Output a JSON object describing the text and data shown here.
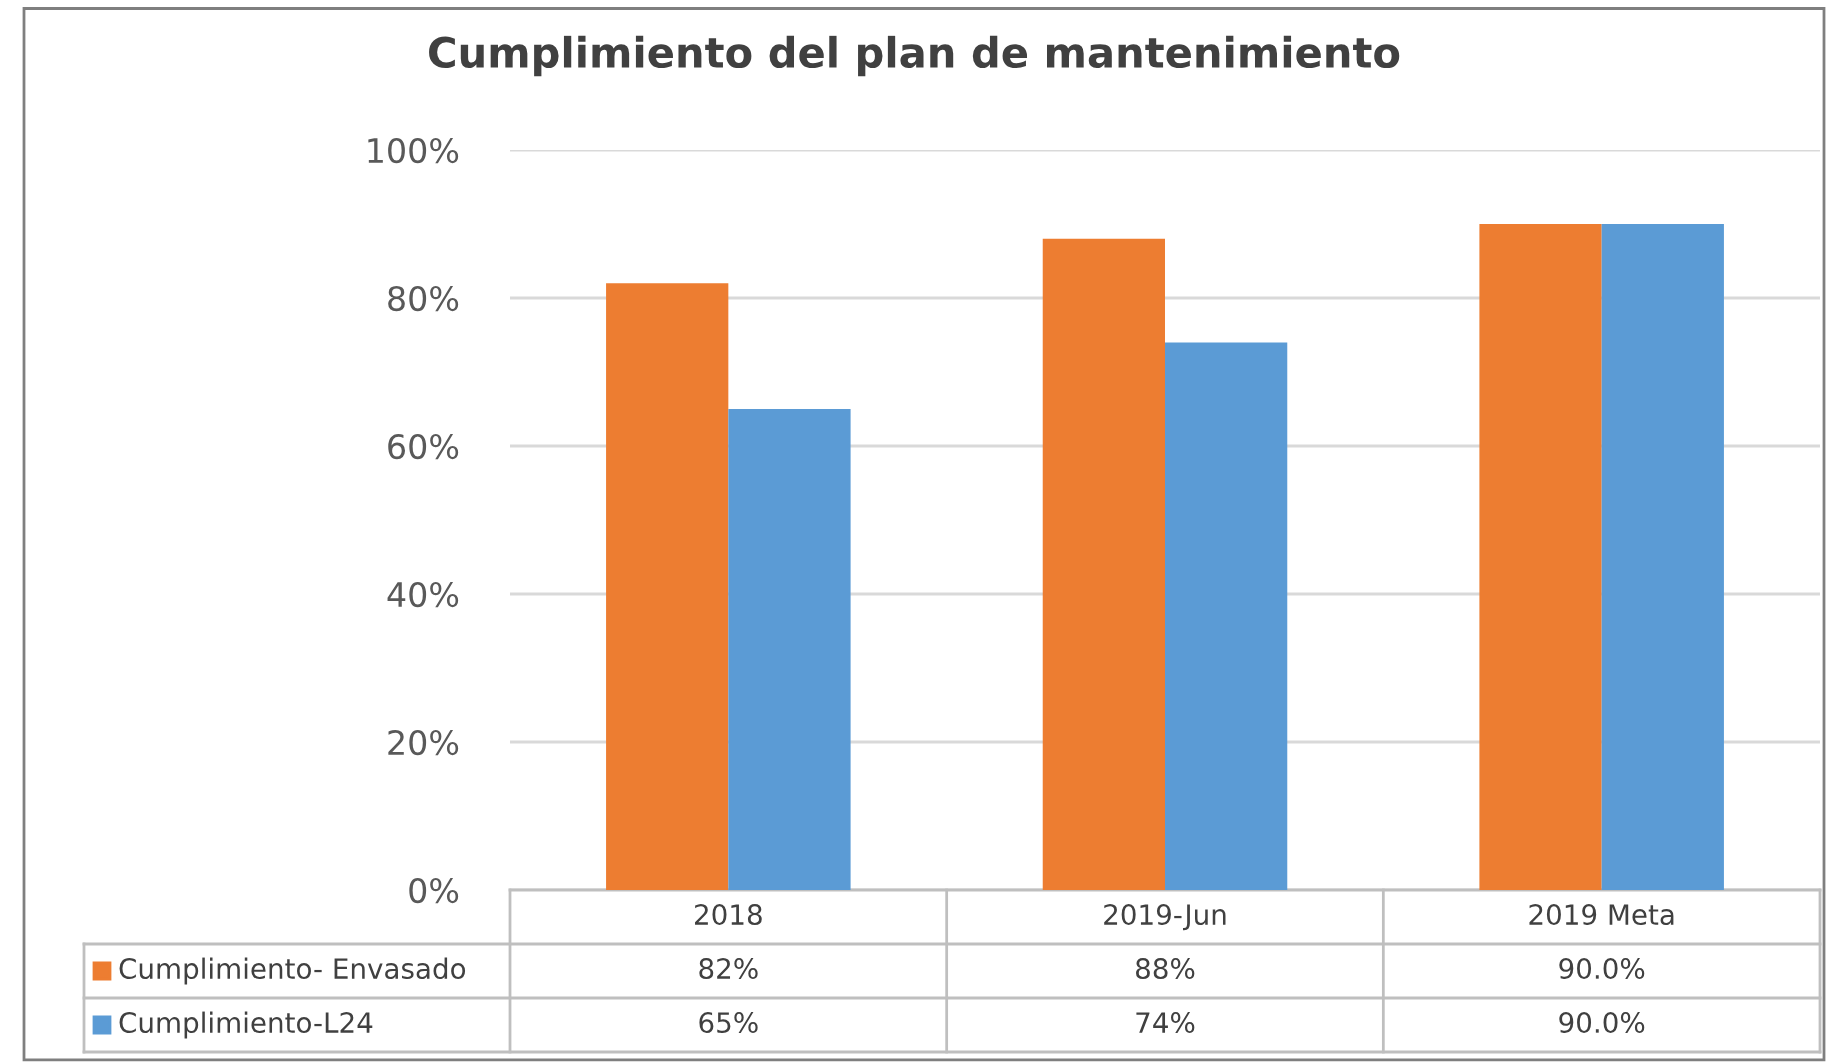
{
  "chart_data": {
    "type": "bar",
    "title": "Cumplimiento del plan de mantenimiento",
    "categories": [
      "2018",
      "2019-Jun",
      "2019 Meta"
    ],
    "series": [
      {
        "name": "Cumplimiento- Envasado",
        "color": "#ed7d31",
        "values": [
          82,
          88,
          90.0
        ],
        "value_labels": [
          "82%",
          "88%",
          "90.0%"
        ]
      },
      {
        "name": "Cumplimiento-L24",
        "color": "#5b9bd5",
        "values": [
          65,
          74,
          90.0
        ],
        "value_labels": [
          "65%",
          "74%",
          "90.0%"
        ]
      }
    ],
    "ylim": [
      0,
      100
    ],
    "yticks": [
      {
        "value": 0,
        "label": "0%"
      },
      {
        "value": 20,
        "label": "20%"
      },
      {
        "value": 40,
        "label": "40%"
      },
      {
        "value": 60,
        "label": "60%"
      },
      {
        "value": 80,
        "label": "80%"
      },
      {
        "value": 100,
        "label": "100%"
      }
    ],
    "grid": "y",
    "legend": "bottom"
  }
}
